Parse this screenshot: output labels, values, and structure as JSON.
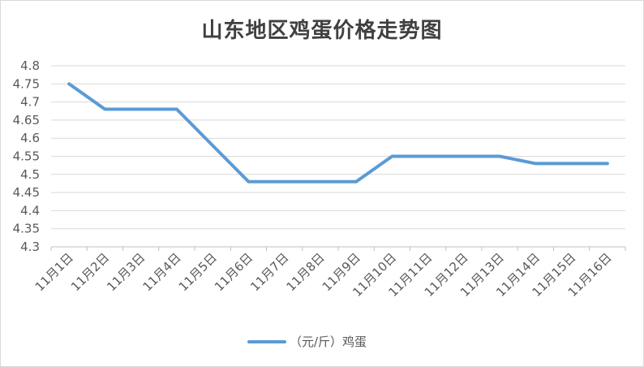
{
  "chart_data": {
    "type": "line",
    "title": "山东地区鸡蛋价格走势图",
    "categories": [
      "11月1日",
      "11月2日",
      "11月3日",
      "11月4日",
      "11月5日",
      "11月6日",
      "11月7日",
      "11月8日",
      "11月9日",
      "11月10日",
      "11月11日",
      "11月12日",
      "11月13日",
      "11月14日",
      "11月15日",
      "11月16日"
    ],
    "series": [
      {
        "name": "（元/斤）鸡蛋",
        "color": "#5b9bd5",
        "values": [
          4.75,
          4.68,
          4.68,
          4.68,
          null,
          4.48,
          4.48,
          4.48,
          4.48,
          4.55,
          4.55,
          4.55,
          4.55,
          4.53,
          4.53,
          4.53
        ]
      }
    ],
    "yticks": [
      "4.8",
      "4.75",
      "4.7",
      "4.65",
      "4.6",
      "4.55",
      "4.5",
      "4.45",
      "4.4",
      "4.35",
      "4.3"
    ],
    "ylim": [
      4.3,
      4.8
    ],
    "grid": true,
    "legend_position": "bottom"
  }
}
